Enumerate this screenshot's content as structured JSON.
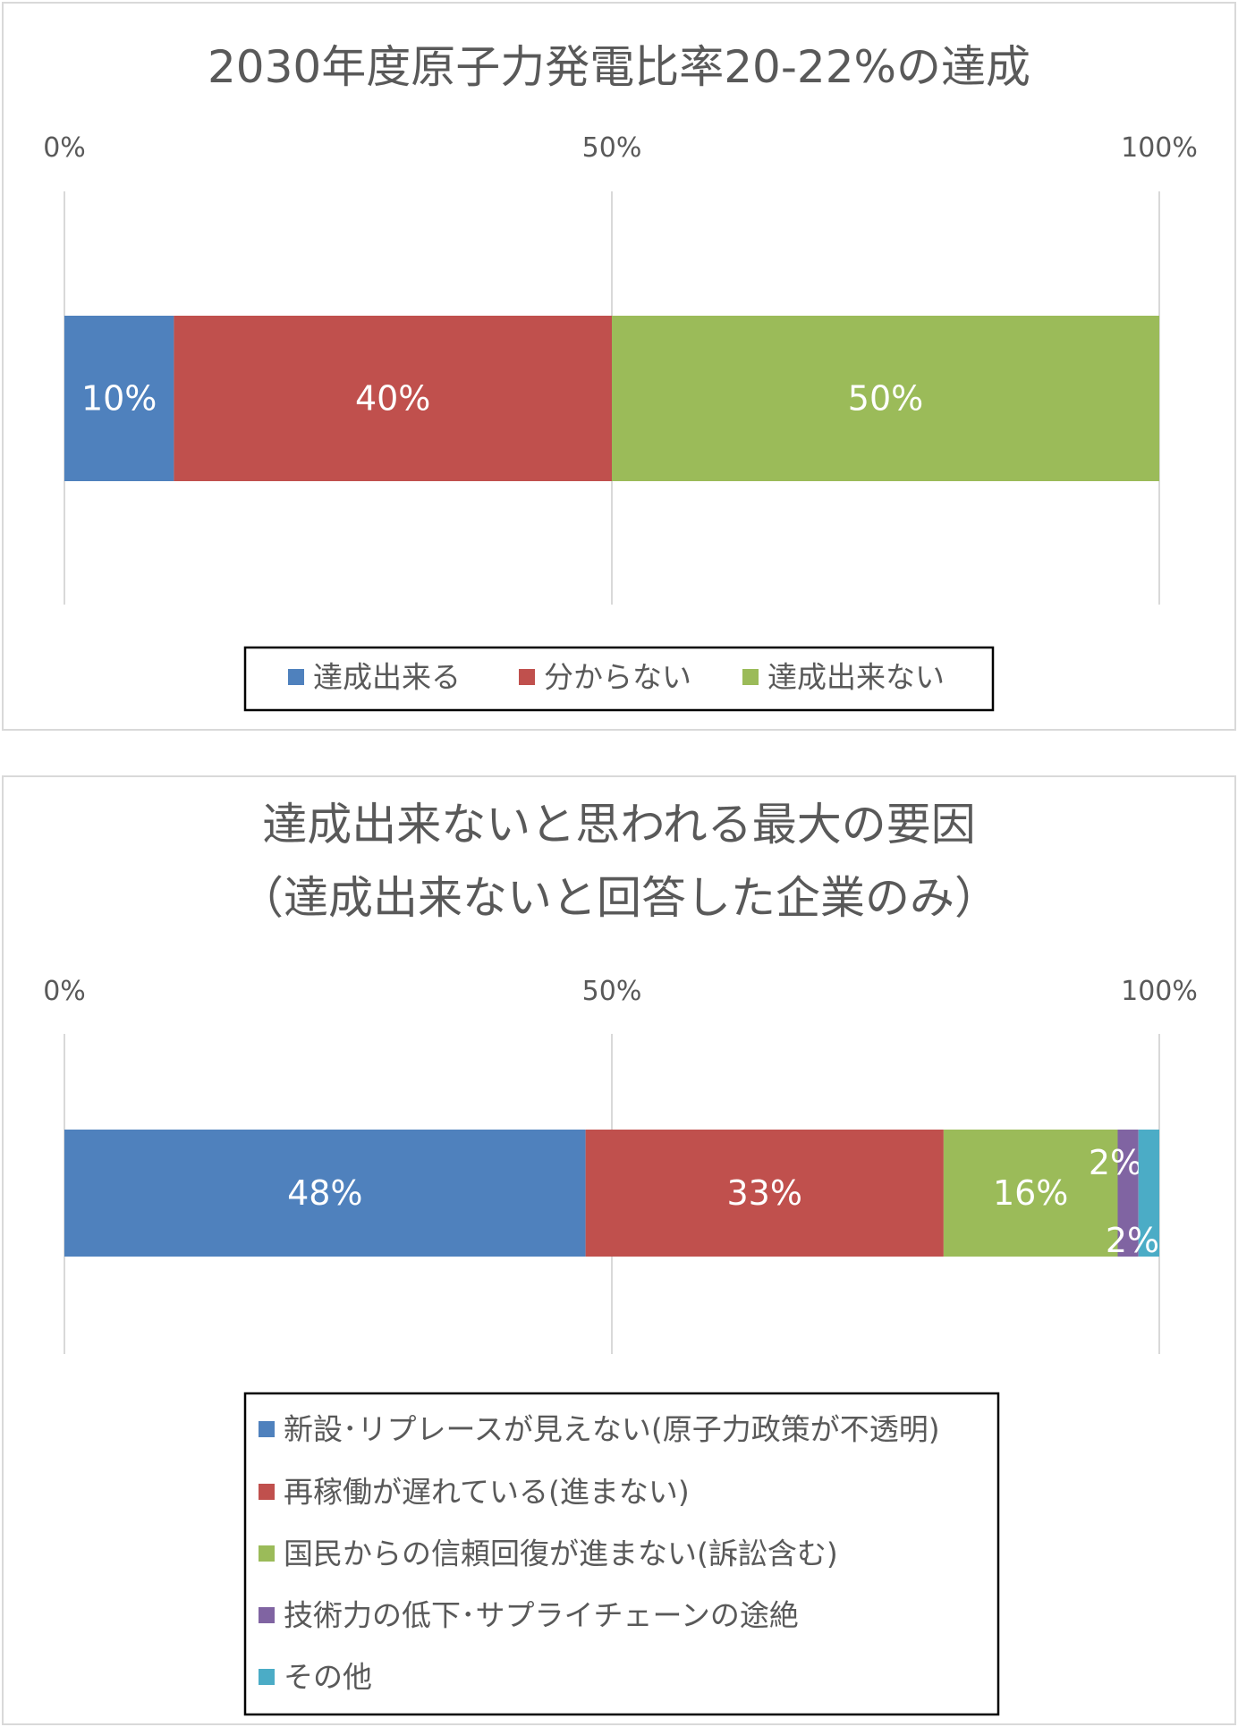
{
  "chart_data": [
    {
      "type": "bar",
      "orientation": "horizontal",
      "stacked": true,
      "percent": true,
      "title": [
        "2030年度原子力発電比率20-22%の達成"
      ],
      "ticks": [
        "0%",
        "50%",
        "100%"
      ],
      "xlim": [
        0,
        100
      ],
      "legend_position": "bottom",
      "series": [
        {
          "name": "達成出来る",
          "value": 10,
          "label": "10%",
          "color": "#4F81BD"
        },
        {
          "name": "分からない",
          "value": 40,
          "label": "40%",
          "color": "#C0504D"
        },
        {
          "name": "達成出来ない",
          "value": 50,
          "label": "50%",
          "color": "#9BBB59"
        }
      ]
    },
    {
      "type": "bar",
      "orientation": "horizontal",
      "stacked": true,
      "percent": true,
      "title": [
        "達成出来ないと思われる最大の要因",
        "（達成出来ないと回答した企業のみ）"
      ],
      "ticks": [
        "0%",
        "50%",
        "100%"
      ],
      "xlim": [
        0,
        100
      ],
      "legend_position": "bottom",
      "series": [
        {
          "name": "新設･リプレースが見えない(原子力政策が不透明)",
          "value": 47.6,
          "label": "48%",
          "color": "#4F81BD"
        },
        {
          "name": "再稼働が遅れている(進まない)",
          "value": 32.7,
          "label": "33%",
          "color": "#C0504D"
        },
        {
          "name": "国民からの信頼回復が進まない(訴訟含む)",
          "value": 15.9,
          "label": "16%",
          "color": "#9BBB59"
        },
        {
          "name": "技術力の低下･サプライチェーンの途絶",
          "value": 1.9,
          "label": "2%",
          "color": "#8064A2"
        },
        {
          "name": "その他",
          "value": 1.9,
          "label": "2%",
          "color": "#4BACC6"
        }
      ]
    }
  ]
}
